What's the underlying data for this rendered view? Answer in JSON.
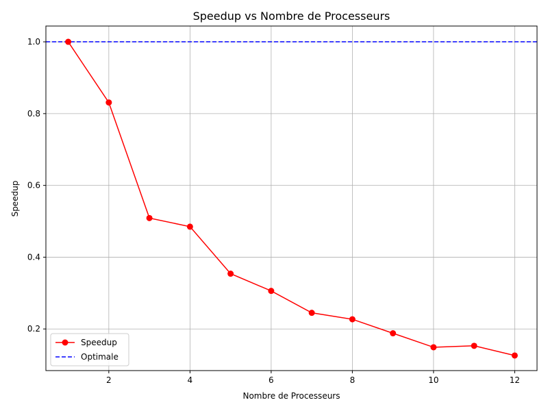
{
  "chart_data": {
    "type": "line",
    "title": "Speedup vs Nombre de Processeurs",
    "xlabel": "Nombre de Processeurs",
    "ylabel": "Speedup",
    "xlim": [
      0.45,
      12.55
    ],
    "ylim": [
      0.084,
      1.044
    ],
    "xticks": [
      2,
      4,
      6,
      8,
      10,
      12
    ],
    "yticks": [
      0.2,
      0.4,
      0.6,
      0.8,
      1.0
    ],
    "xtick_labels": [
      "2",
      "4",
      "6",
      "8",
      "10",
      "12"
    ],
    "ytick_labels": [
      "0.2",
      "0.4",
      "0.6",
      "0.8",
      "1.0"
    ],
    "grid": true,
    "legend_position": "lower-left",
    "series": [
      {
        "name": "Speedup",
        "color": "#ff0000",
        "style": "solid",
        "marker": "circle",
        "x": [
          1,
          2,
          3,
          4,
          5,
          6,
          7,
          8,
          9,
          10,
          11,
          12
        ],
        "y": [
          1.0,
          0.831,
          0.509,
          0.485,
          0.354,
          0.306,
          0.245,
          0.227,
          0.188,
          0.149,
          0.153,
          0.126
        ]
      },
      {
        "name": "Optimale",
        "color": "#0000ff",
        "style": "dashed",
        "marker": "none",
        "hline": 1.0
      }
    ]
  }
}
